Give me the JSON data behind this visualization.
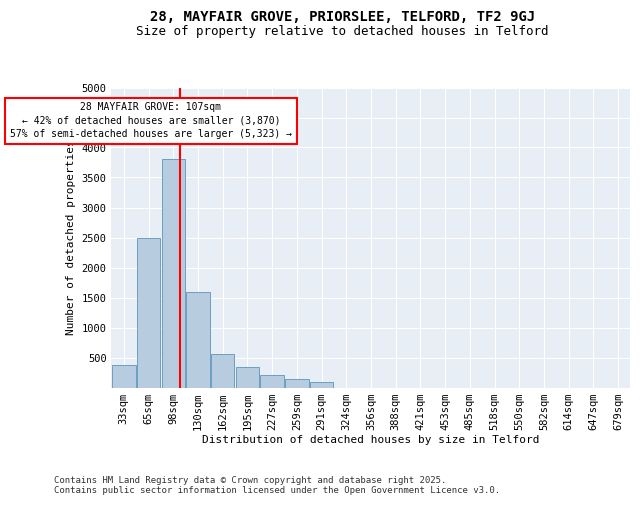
{
  "title1": "28, MAYFAIR GROVE, PRIORSLEE, TELFORD, TF2 9GJ",
  "title2": "Size of property relative to detached houses in Telford",
  "xlabel": "Distribution of detached houses by size in Telford",
  "ylabel": "Number of detached properties",
  "footer": "Contains HM Land Registry data © Crown copyright and database right 2025.\nContains public sector information licensed under the Open Government Licence v3.0.",
  "categories": [
    "33sqm",
    "65sqm",
    "98sqm",
    "130sqm",
    "162sqm",
    "195sqm",
    "227sqm",
    "259sqm",
    "291sqm",
    "324sqm",
    "356sqm",
    "388sqm",
    "421sqm",
    "453sqm",
    "485sqm",
    "518sqm",
    "550sqm",
    "582sqm",
    "614sqm",
    "647sqm",
    "679sqm"
  ],
  "values": [
    370,
    2500,
    3800,
    1600,
    560,
    350,
    210,
    150,
    100,
    0,
    0,
    0,
    0,
    0,
    0,
    0,
    0,
    0,
    0,
    0,
    0
  ],
  "bar_color": "#b8ccdf",
  "bar_edge_color": "#6a9fc0",
  "vline_color": "red",
  "annotation_text": "28 MAYFAIR GROVE: 107sqm\n← 42% of detached houses are smaller (3,870)\n57% of semi-detached houses are larger (5,323) →",
  "ylim": [
    0,
    5000
  ],
  "yticks": [
    0,
    500,
    1000,
    1500,
    2000,
    2500,
    3000,
    3500,
    4000,
    4500,
    5000
  ],
  "background_color": "#e8eef5",
  "grid_color": "white",
  "title1_fontsize": 10,
  "title2_fontsize": 9,
  "xlabel_fontsize": 8,
  "ylabel_fontsize": 8,
  "footer_fontsize": 6.5,
  "tick_fontsize": 7.5,
  "annot_fontsize": 7
}
